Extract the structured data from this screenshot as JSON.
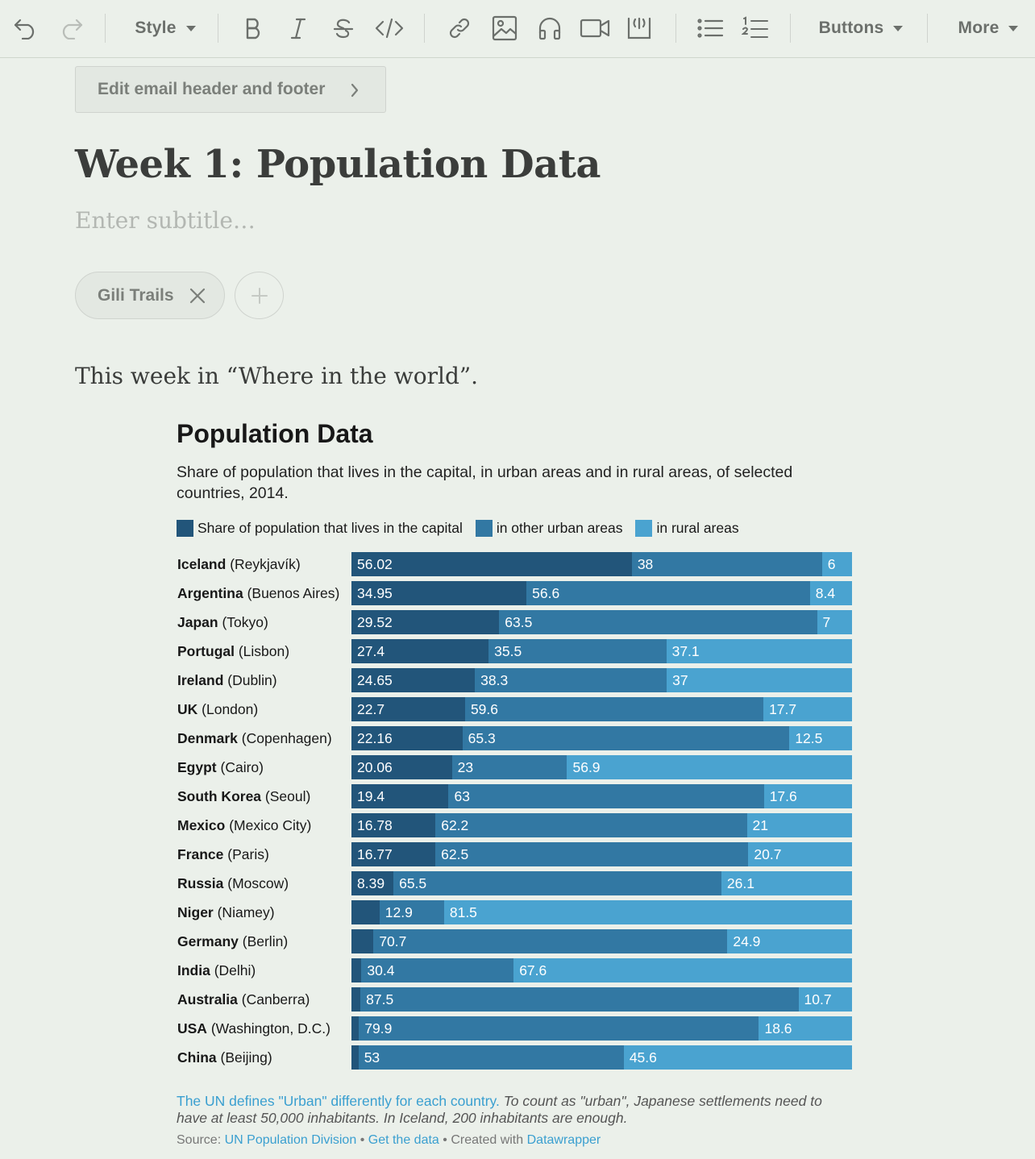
{
  "toolbar": {
    "style_label": "Style",
    "buttons_label": "Buttons",
    "more_label": "More"
  },
  "editor": {
    "edit_header_footer_label": "Edit email header and footer",
    "title": "Week 1: Population Data",
    "subtitle_placeholder": "Enter subtitle…",
    "tags": [
      "Gili Trails"
    ],
    "intro_text": "This week in “Where in the world”."
  },
  "chart_data": {
    "type": "bar",
    "stacked": true,
    "orientation": "horizontal",
    "title": "Population Data",
    "subtitle": "Share of population that lives in the capital, in urban areas and in rural areas, of selected countries, 2014.",
    "colors": [
      "#22557a",
      "#3278a3",
      "#4aa3d0"
    ],
    "series": [
      {
        "name": "Share of population that lives in the capital",
        "values": [
          56.02,
          34.95,
          29.52,
          27.4,
          24.65,
          22.7,
          22.16,
          20.06,
          19.4,
          16.78,
          16.77,
          8.39,
          5.6,
          4.4,
          2.0,
          1.8,
          1.5,
          1.4
        ]
      },
      {
        "name": "in other urban areas",
        "values": [
          38,
          56.6,
          63.5,
          35.5,
          38.3,
          59.6,
          65.3,
          23,
          63,
          62.2,
          62.5,
          65.5,
          12.9,
          70.7,
          30.4,
          87.5,
          79.9,
          53
        ]
      },
      {
        "name": "in rural areas",
        "values": [
          6,
          8.4,
          7,
          37.1,
          37,
          17.7,
          12.5,
          56.9,
          17.6,
          21,
          20.7,
          26.1,
          81.5,
          24.9,
          67.6,
          10.7,
          18.6,
          45.6
        ]
      }
    ],
    "categories": [
      {
        "country": "Iceland",
        "capital": "(Reykjavík)"
      },
      {
        "country": "Argentina",
        "capital": "(Buenos Aires)"
      },
      {
        "country": "Japan",
        "capital": "(Tokyo)"
      },
      {
        "country": "Portugal",
        "capital": "(Lisbon)"
      },
      {
        "country": "Ireland",
        "capital": "(Dublin)"
      },
      {
        "country": "UK",
        "capital": "(London)"
      },
      {
        "country": "Denmark",
        "capital": "(Copenhagen)"
      },
      {
        "country": "Egypt",
        "capital": "(Cairo)"
      },
      {
        "country": "South Korea",
        "capital": "(Seoul)"
      },
      {
        "country": "Mexico",
        "capital": "(Mexico City)"
      },
      {
        "country": "France",
        "capital": "(Paris)"
      },
      {
        "country": "Russia",
        "capital": "(Moscow)"
      },
      {
        "country": "Niger",
        "capital": "(Niamey)"
      },
      {
        "country": "Germany",
        "capital": "(Berlin)"
      },
      {
        "country": "India",
        "capital": "(Delhi)"
      },
      {
        "country": "Australia",
        "capital": "(Canberra)"
      },
      {
        "country": "USA",
        "capital": "(Washington, D.C.)"
      },
      {
        "country": "China",
        "capital": "(Beijing)"
      }
    ],
    "labels": [
      [
        "56.02",
        "38",
        "6"
      ],
      [
        "34.95",
        "56.6",
        "8.4"
      ],
      [
        "29.52",
        "63.5",
        "7"
      ],
      [
        "27.4",
        "35.5",
        "37.1"
      ],
      [
        "24.65",
        "38.3",
        "37"
      ],
      [
        "22.7",
        "59.6",
        "17.7"
      ],
      [
        "22.16",
        "65.3",
        "12.5"
      ],
      [
        "20.06",
        "23",
        "56.9"
      ],
      [
        "19.4",
        "63",
        "17.6"
      ],
      [
        "16.78",
        "62.2",
        "21"
      ],
      [
        "16.77",
        "62.5",
        "20.7"
      ],
      [
        "8.39",
        "65.5",
        "26.1"
      ],
      [
        "",
        "12.9",
        "81.5"
      ],
      [
        "",
        "70.7",
        "24.9"
      ],
      [
        "",
        "30.4",
        "67.6"
      ],
      [
        "",
        "87.5",
        "10.7"
      ],
      [
        "",
        "79.9",
        "18.6"
      ],
      [
        "",
        "53",
        "45.6"
      ]
    ],
    "xlim": [
      0,
      100
    ],
    "legend_position": "top",
    "note_link": "The UN defines \"Urban\" differently for each country.",
    "note_text": " To count as \"urban\", Japanese settlements need to have at least 50,000 inhabitants. In Iceland, 200 inhabitants are enough.",
    "source_prefix": "Source: ",
    "source_link": "UN Population Division",
    "get_data": "Get the data",
    "created_with": "Created with",
    "datawrapper": "Datawrapper",
    "bullet": "•"
  }
}
